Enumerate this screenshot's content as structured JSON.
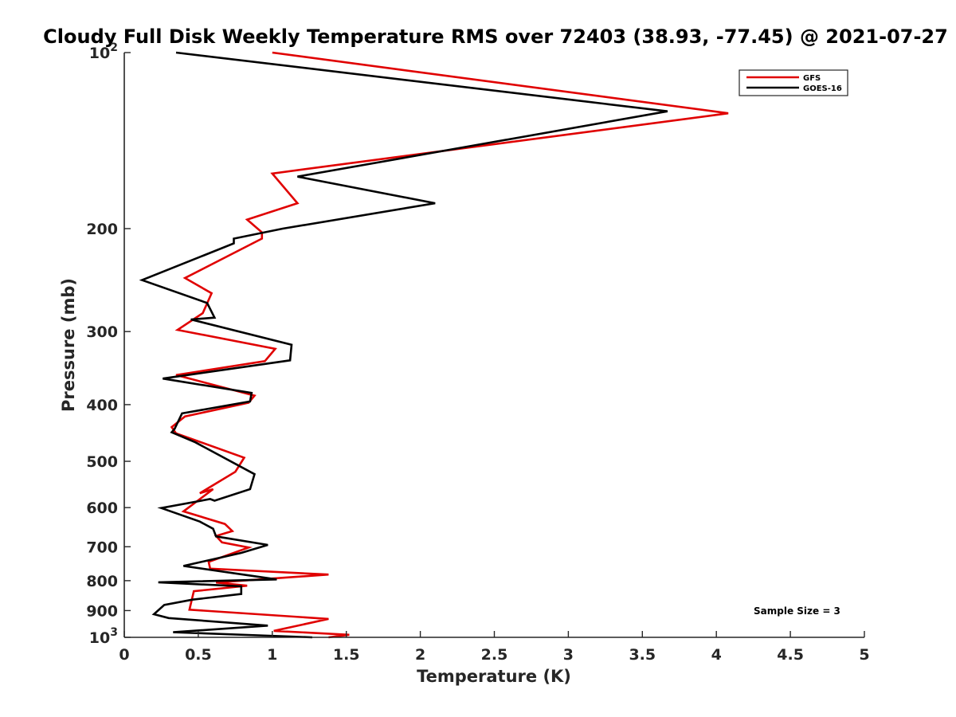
{
  "chart_data": {
    "type": "line",
    "title": "Cloudy Full Disk Weekly Temperature RMS over 72403 (38.93, -77.45) @ 2021-07-27",
    "xlabel": "Temperature (K)",
    "ylabel": "Pressure (mb)",
    "xlim": [
      0,
      5
    ],
    "ylim": [
      100,
      1000
    ],
    "y_scale": "log",
    "y_reversed": true,
    "x_ticks": [
      {
        "value": 0,
        "label": "0"
      },
      {
        "value": 0.5,
        "label": "0.5"
      },
      {
        "value": 1,
        "label": "1"
      },
      {
        "value": 1.5,
        "label": "1.5"
      },
      {
        "value": 2,
        "label": "2"
      },
      {
        "value": 2.5,
        "label": "2.5"
      },
      {
        "value": 3,
        "label": "3"
      },
      {
        "value": 3.5,
        "label": "3.5"
      },
      {
        "value": 4,
        "label": "4"
      },
      {
        "value": 4.5,
        "label": "4.5"
      },
      {
        "value": 5,
        "label": "5"
      }
    ],
    "y_ticks": [
      {
        "value": 100,
        "base": "10",
        "exp": "2"
      },
      {
        "value": 200,
        "label": "200"
      },
      {
        "value": 300,
        "label": "300"
      },
      {
        "value": 400,
        "label": "400"
      },
      {
        "value": 500,
        "label": "500"
      },
      {
        "value": 600,
        "label": "600"
      },
      {
        "value": 700,
        "label": "700"
      },
      {
        "value": 800,
        "label": "800"
      },
      {
        "value": 900,
        "label": "900"
      },
      {
        "value": 1000,
        "base": "10",
        "exp": "3"
      }
    ],
    "grid": false,
    "legend_position": "top-right",
    "annotation": "Sample Size = 3",
    "series": [
      {
        "name": "GFS",
        "color": "#e00000",
        "x": [
          1.0,
          4.08,
          1.0,
          1.17,
          0.83,
          0.93,
          0.93,
          0.41,
          0.59,
          0.53,
          0.36,
          1.02,
          0.95,
          0.35,
          0.88,
          0.84,
          0.41,
          0.32,
          0.35,
          0.81,
          0.75,
          0.51,
          0.6,
          0.4,
          0.68,
          0.73,
          0.62,
          0.66,
          0.84,
          0.57,
          0.58,
          1.38,
          0.62,
          0.83,
          0.47,
          0.44,
          1.38,
          1.01,
          1.52,
          1.38
        ],
        "y": [
          100,
          127,
          161,
          181,
          193,
          203,
          208,
          243,
          258,
          279,
          298,
          321,
          337,
          356,
          386,
          397,
          419,
          437,
          448,
          493,
          521,
          567,
          558,
          609,
          640,
          658,
          671,
          688,
          702,
          743,
          763,
          781,
          806,
          816,
          834,
          897,
          930,
          975,
          990,
          1000
        ]
      },
      {
        "name": "GOES-16",
        "color": "#000000",
        "x": [
          0.35,
          3.67,
          1.17,
          2.1,
          1.07,
          0.74,
          0.74,
          0.12,
          0.56,
          0.61,
          0.45,
          1.13,
          1.12,
          0.26,
          0.86,
          0.85,
          0.39,
          0.34,
          0.32,
          0.48,
          0.88,
          0.85,
          0.61,
          0.58,
          0.25,
          0.51,
          0.6,
          0.62,
          0.97,
          0.79,
          0.4,
          1.03,
          0.23,
          0.79,
          0.79,
          0.46,
          0.27,
          0.2,
          0.3,
          0.97,
          0.33,
          1.27
        ],
        "y": [
          100,
          126,
          163,
          181,
          200,
          208,
          212,
          245,
          268,
          284,
          286,
          316,
          336,
          361,
          382,
          395,
          414,
          440,
          446,
          464,
          526,
          558,
          584,
          580,
          601,
          634,
          652,
          672,
          695,
          717,
          755,
          796,
          805,
          818,
          843,
          862,
          880,
          913,
          927,
          955,
          980,
          1000
        ]
      }
    ]
  }
}
